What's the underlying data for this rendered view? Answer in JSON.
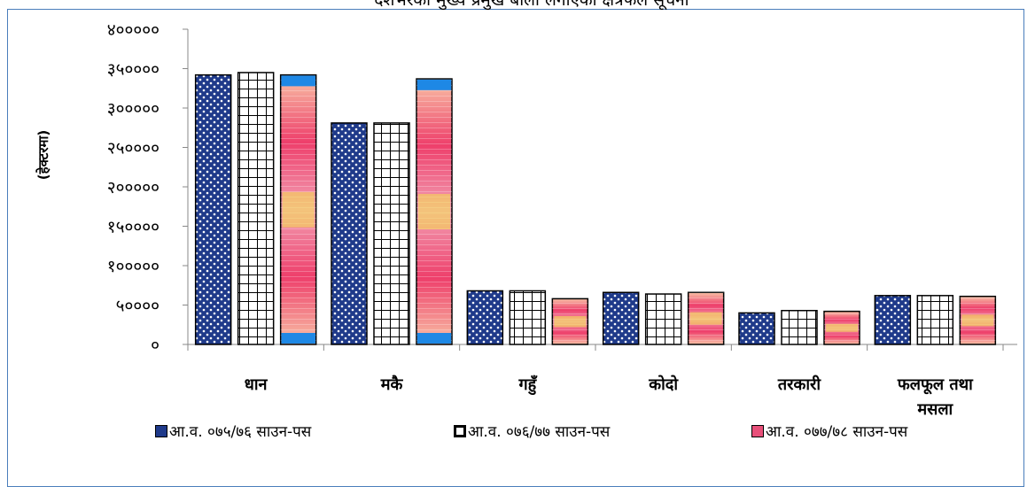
{
  "chart_data": {
    "type": "bar",
    "title": "देशभरका मुख्य प्रमुख बाली लगाएको क्षेत्रफल सूचना",
    "ylabel": "(हेक्टरमा)",
    "xlabel": "",
    "categories": [
      "धान",
      "मकै",
      "गहुँ",
      "कोदो",
      "तरकारी",
      "फलफूल तथा मसला"
    ],
    "ylim": [
      0,
      400000
    ],
    "yticks": [
      0,
      50000,
      100000,
      150000,
      200000,
      250000,
      300000,
      350000,
      400000
    ],
    "ytick_labels": [
      "०",
      "५००००",
      "१०००००",
      "१५००००",
      "२०००००",
      "२५००००",
      "३०००००",
      "३५००००",
      "४०००००"
    ],
    "grid": false,
    "legend_position": "bottom",
    "series": [
      {
        "name": "आ.व. ०७५/७६ साउन-पस",
        "values": [
          342000,
          281000,
          68000,
          66000,
          40000,
          62000
        ]
      },
      {
        "name": "आ.व. ०७६/७७ साउन-पस",
        "values": [
          345000,
          281000,
          68000,
          64000,
          43000,
          62000
        ]
      },
      {
        "name": "आ.व. ०७७/७८ साउन-पस",
        "values": [
          342000,
          337000,
          58000,
          66000,
          42000,
          61000
        ]
      }
    ]
  },
  "colors": {
    "frame": "#4a7ebb",
    "series1": "#1f3a8a",
    "series2": "#000000",
    "series3": "#e8507a"
  }
}
